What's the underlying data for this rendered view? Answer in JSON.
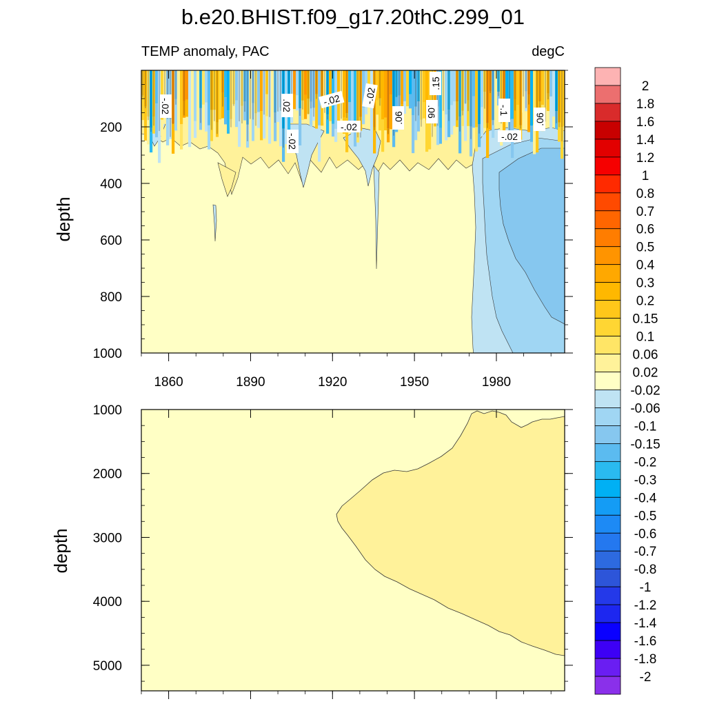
{
  "chart_data": {
    "type": "heatmap",
    "title": "b.e20.BHIST.f09_g17.20thC.299_01",
    "subtitle_left": "TEMP anomaly, PAC",
    "subtitle_right": "degC",
    "xlabel": "",
    "xticks": [
      1860,
      1890,
      1920,
      1950,
      1980
    ],
    "xlim": [
      1850,
      2005
    ],
    "panels": [
      {
        "name": "upper",
        "ylabel": "depth",
        "ylim": [
          0,
          1000
        ],
        "yticks": [
          200,
          400,
          600,
          800,
          1000
        ],
        "contour_labels": [
          "-.02",
          ".02",
          "-.02",
          "-.02",
          "-.02",
          ".06",
          ".06",
          ".15",
          "-.1",
          ".06",
          "-.02",
          "-.02"
        ]
      },
      {
        "name": "lower",
        "ylabel": "depth",
        "ylim": [
          1000,
          5400
        ],
        "yticks": [
          1000,
          2000,
          3000,
          4000,
          5000
        ]
      }
    ],
    "colorbar": {
      "labels": [
        "2",
        "1.8",
        "1.6",
        "1.4",
        "1.2",
        "1",
        "0.8",
        "0.7",
        "0.6",
        "0.5",
        "0.4",
        "0.3",
        "0.2",
        "0.15",
        "0.1",
        "0.06",
        "0.02",
        "-0.02",
        "-0.06",
        "-0.1",
        "-0.15",
        "-0.2",
        "-0.3",
        "-0.4",
        "-0.5",
        "-0.6",
        "-0.7",
        "-0.8",
        "-1",
        "-1.2",
        "-1.4",
        "-1.6",
        "-1.8",
        "-2"
      ],
      "colors": [
        "#fdb3b3",
        "#ec6f6f",
        "#d92b2b",
        "#c80000",
        "#e20000",
        "#f60000",
        "#ff2a00",
        "#ff4a00",
        "#ff6600",
        "#ff7d00",
        "#ff9400",
        "#ffa800",
        "#ffb800",
        "#ffc71a",
        "#ffd633",
        "#ffe566",
        "#fff29a",
        "#ffffc5",
        "#bfe3f3",
        "#a0d6f3",
        "#86c7ef",
        "#5bbbf0",
        "#2abaf0",
        "#00b0f4",
        "#149cf5",
        "#1d8af5",
        "#2478ef",
        "#2d6ae0",
        "#2d55d9",
        "#2439e9",
        "#1d27f0",
        "#0a00ff",
        "#3d00f5",
        "#6a1ef2",
        "#8a30ea"
      ]
    }
  }
}
